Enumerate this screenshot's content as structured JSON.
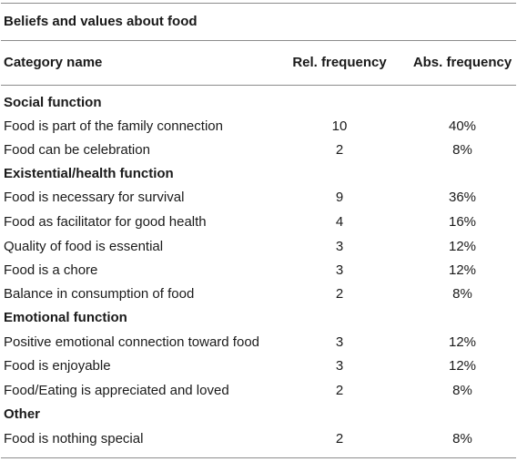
{
  "table": {
    "title": "Beliefs and values about food",
    "columns": {
      "name": "Category name",
      "rel": "Rel. frequency",
      "abs": "Abs. frequency"
    },
    "sections": [
      {
        "name": "Social function",
        "rows": [
          {
            "name": "Food is part of the family connection",
            "rel": "10",
            "abs": "40%"
          },
          {
            "name": "Food can be celebration",
            "rel": "2",
            "abs": "8%"
          }
        ]
      },
      {
        "name": "Existential/health function",
        "rows": [
          {
            "name": "Food is necessary for survival",
            "rel": "9",
            "abs": "36%"
          },
          {
            "name": "Food as facilitator for good health",
            "rel": "4",
            "abs": "16%"
          },
          {
            "name": "Quality of food is essential",
            "rel": "3",
            "abs": "12%"
          },
          {
            "name": "Food is a chore",
            "rel": "3",
            "abs": "12%"
          },
          {
            "name": "Balance in consumption of food",
            "rel": "2",
            "abs": "8%"
          }
        ]
      },
      {
        "name": "Emotional function",
        "rows": [
          {
            "name": "Positive emotional connection toward food",
            "rel": "3",
            "abs": "12%"
          },
          {
            "name": "Food is enjoyable",
            "rel": "3",
            "abs": "12%"
          },
          {
            "name": "Food/Eating is appreciated and loved",
            "rel": "2",
            "abs": "8%"
          }
        ]
      },
      {
        "name": "Other",
        "rows": [
          {
            "name": "Food is nothing special",
            "rel": "2",
            "abs": "8%"
          }
        ]
      }
    ]
  }
}
